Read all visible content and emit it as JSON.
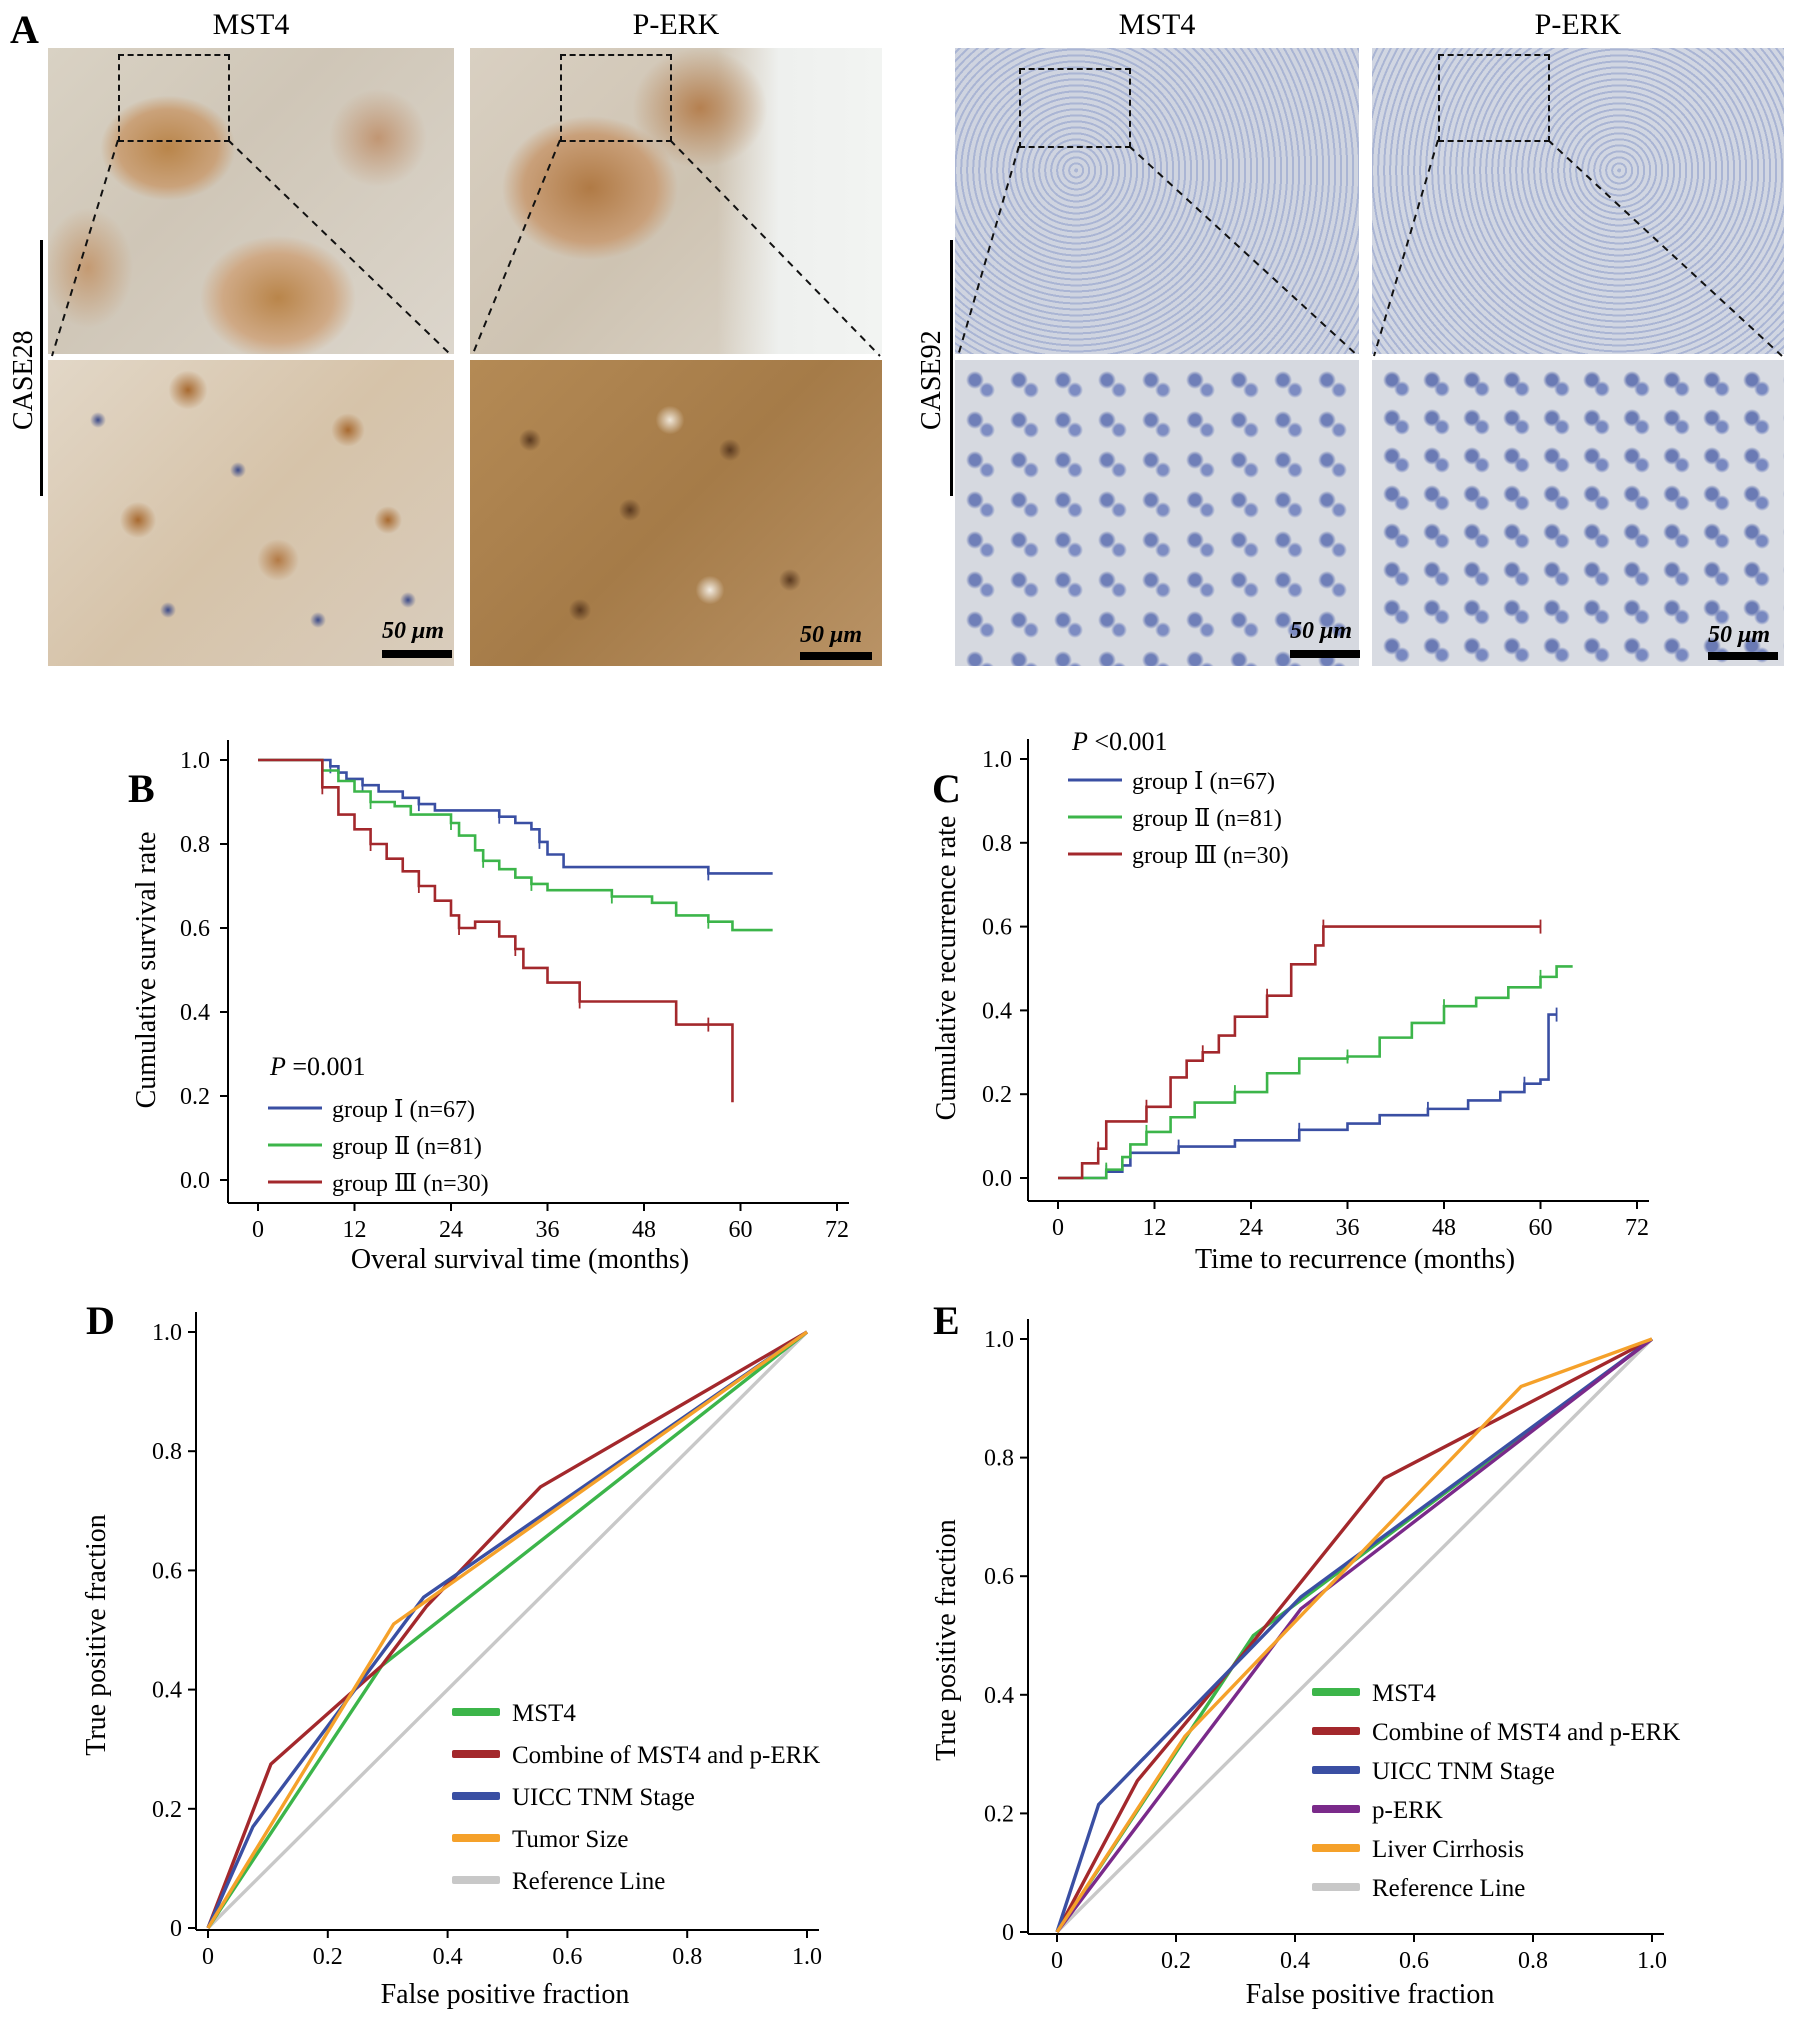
{
  "panel_a": {
    "letter": "A",
    "left": {
      "col1": "MST4",
      "col2": "P-ERK",
      "case": "CASE28",
      "scale1": "50 μm",
      "scale2": "50 μm"
    },
    "right": {
      "col1": "MST4",
      "col2": "P-ERK",
      "case": "CASE92",
      "scale1": "50 μm",
      "scale2": "50 μm"
    }
  },
  "colors": {
    "group1": "#3a4fa3",
    "group2": "#3cb54a",
    "group3": "#a3282c",
    "mst4": "#3cb54a",
    "combine": "#a3282c",
    "uicc": "#3a4fa3",
    "tumor": "#f5a12a",
    "perk": "#7a2a8a",
    "cirrhosis": "#f5a12a",
    "reference": "#c8c8c8"
  },
  "chart_data": [
    {
      "id": "B",
      "letter": "B",
      "type": "line",
      "title": "",
      "xlabel": "Overal survival time (months)",
      "ylabel": "Cumulative survival rate",
      "xlim": [
        0,
        72
      ],
      "ylim": [
        0,
        1.0
      ],
      "xticks": [
        "0",
        "12",
        "24",
        "36",
        "48",
        "60",
        "72"
      ],
      "yticks": [
        "0.0",
        "0.2",
        "0.4",
        "0.6",
        "0.8",
        "1.0"
      ],
      "annotation_p": "P",
      "annotation_val": "=0.001",
      "series": [
        {
          "name": "group Ⅰ (n=67)",
          "color_key": "group1",
          "x": [
            0,
            7,
            9,
            10,
            11,
            13,
            15,
            18,
            20,
            22,
            24,
            30,
            32,
            34,
            35,
            36,
            38,
            56,
            64
          ],
          "y": [
            1.0,
            1.0,
            0.985,
            0.97,
            0.955,
            0.94,
            0.925,
            0.91,
            0.895,
            0.88,
            0.88,
            0.865,
            0.85,
            0.835,
            0.805,
            0.775,
            0.745,
            0.73,
            0.73
          ]
        },
        {
          "name": "group Ⅱ (n=81)",
          "color_key": "group2",
          "x": [
            0,
            7,
            8,
            10,
            12,
            14,
            17,
            19,
            24,
            25,
            27,
            28,
            30,
            32,
            34,
            36,
            40,
            44,
            49,
            52,
            56,
            59,
            64
          ],
          "y": [
            1.0,
            1.0,
            0.975,
            0.95,
            0.925,
            0.9,
            0.89,
            0.87,
            0.85,
            0.82,
            0.785,
            0.76,
            0.74,
            0.72,
            0.705,
            0.69,
            0.69,
            0.675,
            0.66,
            0.63,
            0.615,
            0.595,
            0.595
          ]
        },
        {
          "name": "group Ⅲ (n=30)",
          "color_key": "group3",
          "x": [
            0,
            7,
            8,
            10,
            12,
            14,
            16,
            18,
            20,
            22,
            24,
            25,
            27,
            30,
            32,
            33,
            36,
            40,
            45,
            52,
            56,
            59,
            59
          ],
          "y": [
            1.0,
            1.0,
            0.935,
            0.87,
            0.835,
            0.8,
            0.765,
            0.735,
            0.7,
            0.665,
            0.63,
            0.6,
            0.615,
            0.58,
            0.55,
            0.505,
            0.47,
            0.425,
            0.425,
            0.37,
            0.37,
            0.37,
            0.185
          ]
        }
      ]
    },
    {
      "id": "C",
      "letter": "C",
      "type": "line",
      "title": "",
      "xlabel": "Time to recurrence (months)",
      "ylabel": "Cumulative recurrence rate",
      "xlim": [
        0,
        72
      ],
      "ylim": [
        0,
        1.0
      ],
      "xticks": [
        "0",
        "12",
        "24",
        "36",
        "48",
        "60",
        "72"
      ],
      "yticks": [
        "0.0",
        "0.2",
        "0.4",
        "0.6",
        "0.8",
        "1.0"
      ],
      "annotation_p": "P",
      "annotation_val": "<0.001",
      "series": [
        {
          "name": "group Ⅰ (n=67)",
          "color_key": "group1",
          "x": [
            0,
            4,
            6,
            8,
            9,
            15,
            17,
            22,
            30,
            36,
            40,
            46,
            51,
            55,
            58,
            60,
            61,
            62
          ],
          "y": [
            0.0,
            0.0,
            0.015,
            0.03,
            0.06,
            0.075,
            0.075,
            0.09,
            0.115,
            0.13,
            0.15,
            0.165,
            0.185,
            0.205,
            0.225,
            0.235,
            0.39,
            0.39
          ]
        },
        {
          "name": "group Ⅱ (n=81)",
          "color_key": "group2",
          "x": [
            0,
            4,
            6,
            8,
            9,
            11,
            14,
            17,
            22,
            26,
            30,
            36,
            40,
            44,
            48,
            52,
            56,
            60,
            62,
            64
          ],
          "y": [
            0.0,
            0.0,
            0.02,
            0.05,
            0.08,
            0.11,
            0.145,
            0.18,
            0.205,
            0.25,
            0.285,
            0.29,
            0.335,
            0.37,
            0.41,
            0.43,
            0.455,
            0.48,
            0.505,
            0.505
          ]
        },
        {
          "name": "group Ⅲ (n=30)",
          "color_key": "group3",
          "x": [
            0,
            3,
            5,
            6,
            9,
            11,
            14,
            16,
            18,
            20,
            22,
            26,
            29,
            32,
            33,
            36,
            38,
            60
          ],
          "y": [
            0.0,
            0.035,
            0.07,
            0.135,
            0.135,
            0.17,
            0.24,
            0.28,
            0.3,
            0.34,
            0.385,
            0.435,
            0.51,
            0.555,
            0.6,
            0.6,
            0.6,
            0.6
          ]
        }
      ]
    },
    {
      "id": "D",
      "letter": "D",
      "type": "line",
      "title": "",
      "xlabel": "False positive fraction",
      "ylabel": "True positive fraction",
      "xlim": [
        0,
        1.0
      ],
      "ylim": [
        0,
        1.0
      ],
      "xticks": [
        "0",
        "0.2",
        "0.4",
        "0.6",
        "0.8",
        "1.0"
      ],
      "yticks": [
        "0",
        "0.2",
        "0.4",
        "0.6",
        "0.8",
        "1.0"
      ],
      "series": [
        {
          "name": "MST4",
          "color_key": "mst4",
          "x": [
            0,
            0.29,
            1.0
          ],
          "y": [
            0,
            0.44,
            1.0
          ]
        },
        {
          "name": "Combine of MST4 and p-ERK",
          "color_key": "combine",
          "x": [
            0,
            0.105,
            0.29,
            0.365,
            0.555,
            1.0
          ],
          "y": [
            0,
            0.275,
            0.44,
            0.54,
            0.74,
            1.0
          ]
        },
        {
          "name": "UICC TNM Stage",
          "color_key": "uicc",
          "x": [
            0,
            0.075,
            0.36,
            1.0
          ],
          "y": [
            0,
            0.17,
            0.555,
            1.0
          ]
        },
        {
          "name": "Tumor Size",
          "color_key": "tumor",
          "x": [
            0,
            0.31,
            1.0
          ],
          "y": [
            0,
            0.51,
            1.0
          ]
        },
        {
          "name": "Reference Line",
          "color_key": "reference",
          "x": [
            0,
            1.0
          ],
          "y": [
            0,
            1.0
          ]
        }
      ]
    },
    {
      "id": "E",
      "letter": "E",
      "type": "line",
      "title": "",
      "xlabel": "False positive fraction",
      "ylabel": "True positive fraction",
      "xlim": [
        0,
        1.0
      ],
      "ylim": [
        0,
        1.0
      ],
      "xticks": [
        "0",
        "0.2",
        "0.4",
        "0.6",
        "0.8",
        "1.0"
      ],
      "yticks": [
        "0",
        "0.2",
        "0.4",
        "0.6",
        "0.8",
        "1.0"
      ],
      "series": [
        {
          "name": "MST4",
          "color_key": "mst4",
          "x": [
            0,
            0.33,
            1.0
          ],
          "y": [
            0,
            0.5,
            1.0
          ]
        },
        {
          "name": "Combine of MST4 and p-ERK",
          "color_key": "combine",
          "x": [
            0,
            0.135,
            0.31,
            0.55,
            1.0
          ],
          "y": [
            0,
            0.255,
            0.465,
            0.765,
            1.0
          ]
        },
        {
          "name": "UICC TNM Stage",
          "color_key": "uicc",
          "x": [
            0,
            0.07,
            0.41,
            1.0
          ],
          "y": [
            0,
            0.215,
            0.565,
            1.0
          ]
        },
        {
          "name": "p-ERK",
          "color_key": "perk",
          "x": [
            0,
            0.41,
            1.0
          ],
          "y": [
            0,
            0.545,
            1.0
          ]
        },
        {
          "name": "Liver Cirrhosis",
          "color_key": "cirrhosis",
          "x": [
            0,
            0.215,
            0.78,
            1.0
          ],
          "y": [
            0,
            0.33,
            0.92,
            1.0
          ]
        },
        {
          "name": "Reference Line",
          "color_key": "reference",
          "x": [
            0,
            1.0
          ],
          "y": [
            0,
            1.0
          ]
        }
      ]
    }
  ]
}
